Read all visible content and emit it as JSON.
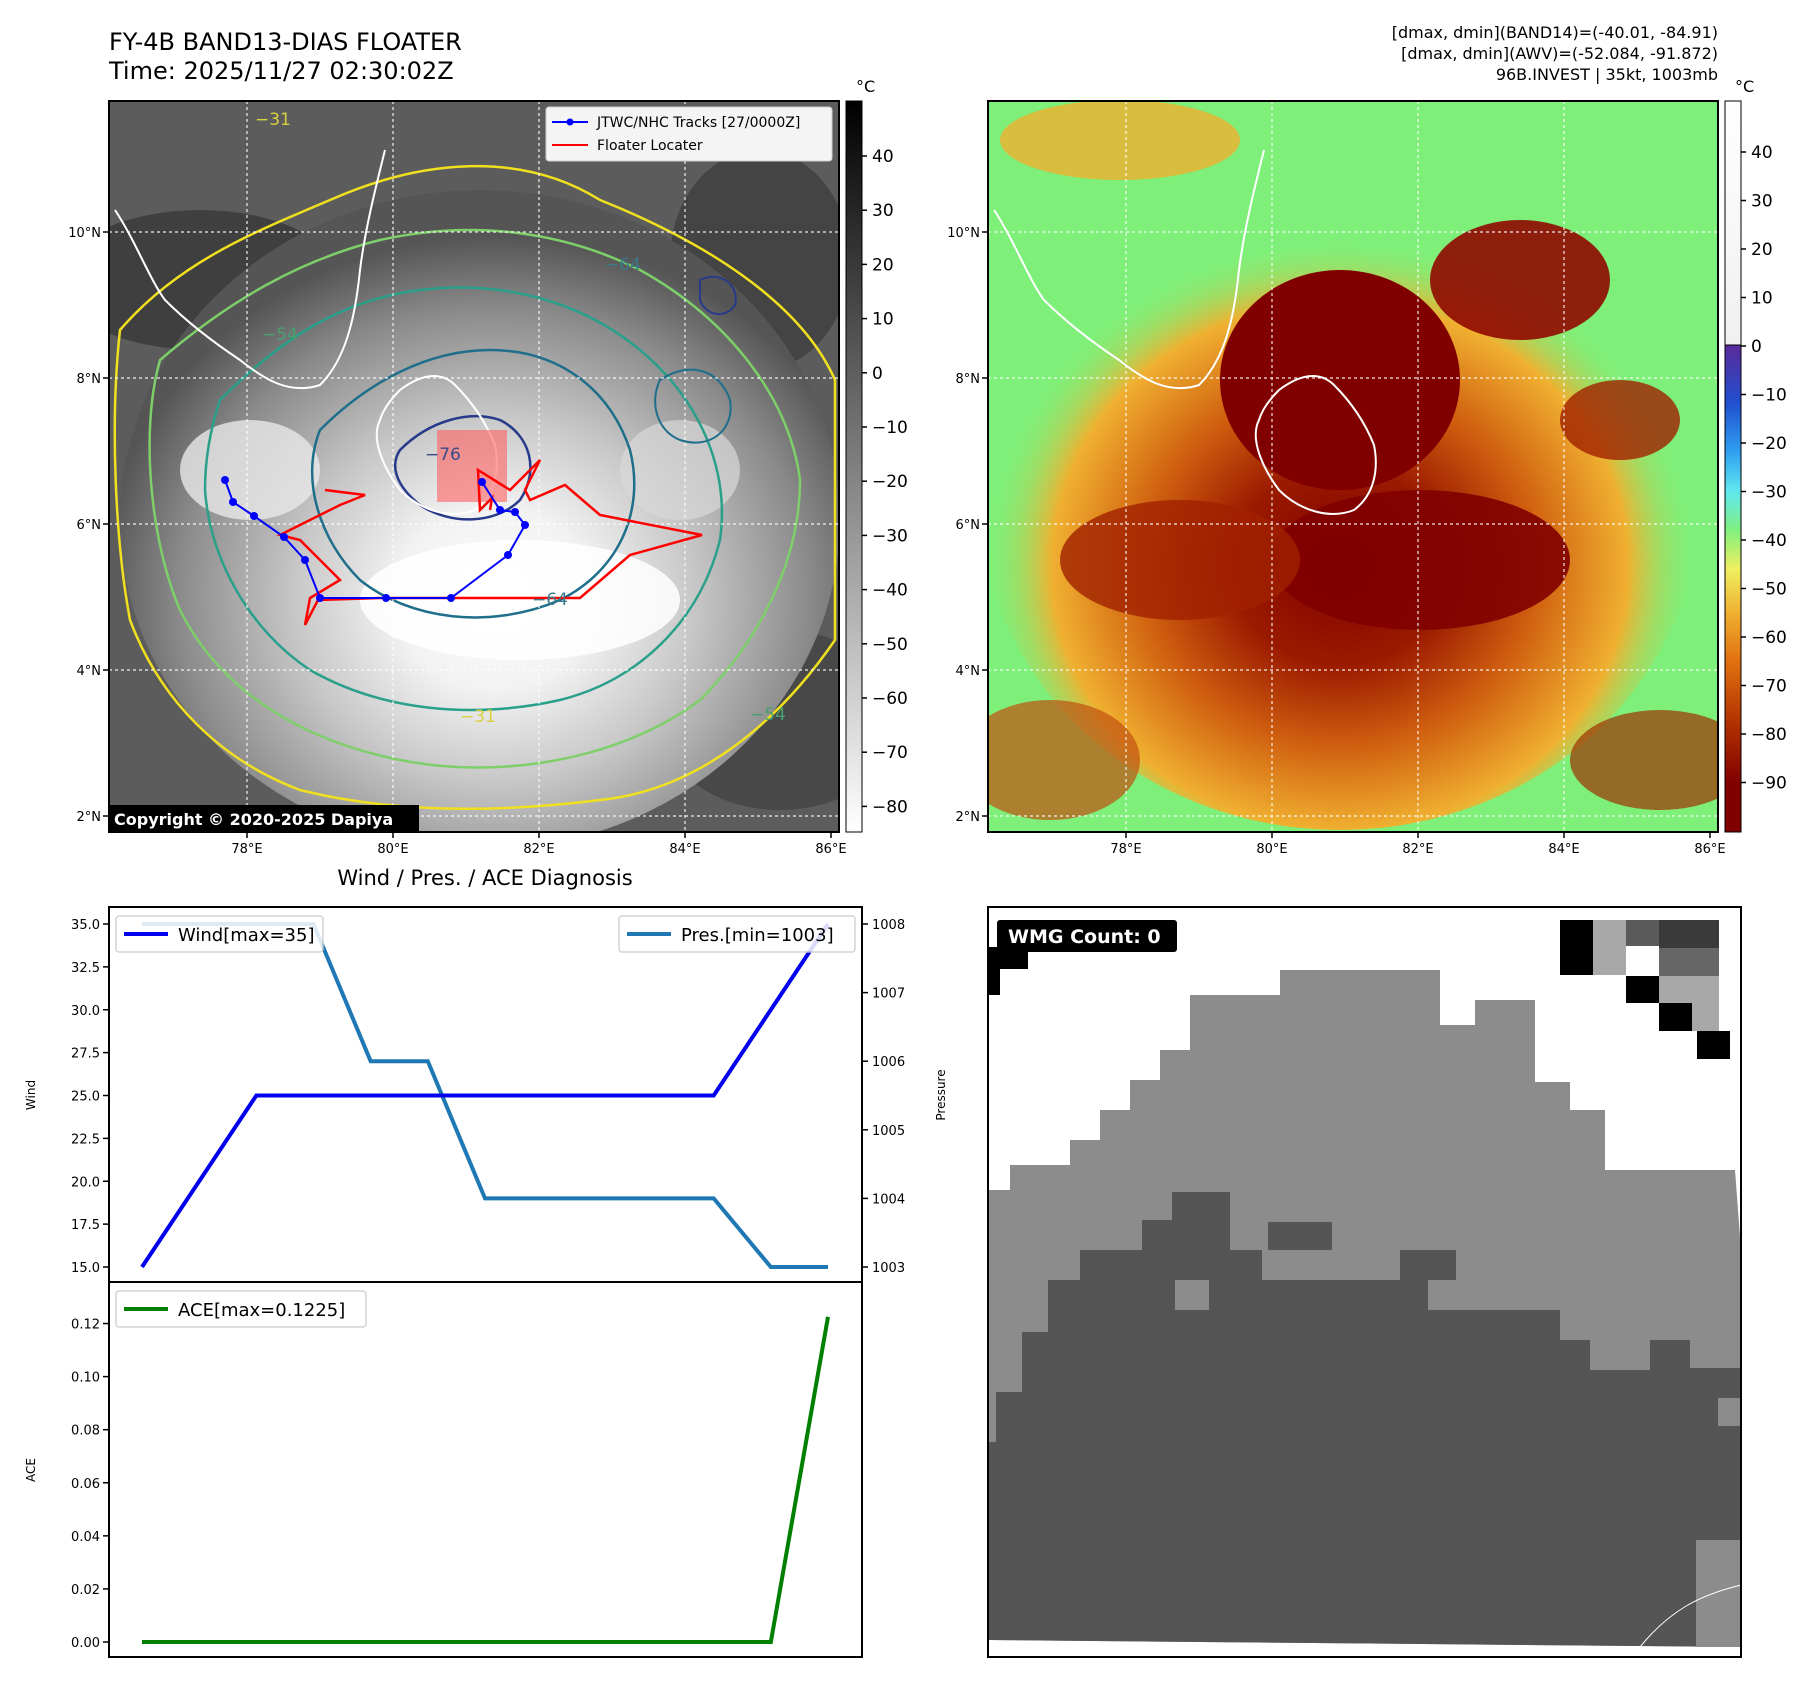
{
  "header": {
    "title_line1": "FY-4B BAND13-DIAS FLOATER",
    "title_line2": "Time: 2025/11/27 02:30:02Z",
    "info_line1": "[dmax, dmin](BAND14)=(-40.01, -84.91)",
    "info_line2": "[dmax, dmin](AWV)=(-52.084, -91.872)",
    "info_line3": "96B.INVEST | 35kt, 1003mb"
  },
  "map_left": {
    "legend": {
      "track_label": "JTWC/NHC Tracks [27/0000Z]",
      "locator_label": "Floater Locater"
    },
    "copyright": "Copyright © 2020-2025 Dapiya",
    "colorbar": {
      "unit": "°C",
      "ticks": [
        "40",
        "30",
        "20",
        "10",
        "0",
        "−10",
        "−20",
        "−30",
        "−40",
        "−50",
        "−60",
        "−70",
        "−80"
      ]
    },
    "contour_labels": [
      "−31",
      "−54",
      "−64",
      "−76"
    ]
  },
  "map_right": {
    "colorbar": {
      "unit": "°C",
      "ticks": [
        "40",
        "30",
        "20",
        "10",
        "0",
        "−10",
        "−20",
        "−30",
        "−40",
        "−50",
        "−60",
        "−70",
        "−80",
        "−90"
      ]
    }
  },
  "map_axes": {
    "lon_ticks": [
      "78°E",
      "80°E",
      "82°E",
      "84°E",
      "86°E"
    ],
    "lat_ticks": [
      "10°N",
      "8°N",
      "6°N",
      "4°N",
      "2°N"
    ]
  },
  "wmg": {
    "label": "WMG Count: 0"
  },
  "colors": {
    "wind": "#0000ee",
    "pres": "#1f77b4",
    "ace": "#008000",
    "track": "#0000ff",
    "locator": "#ff0000"
  },
  "chart_data": [
    {
      "type": "line",
      "title": "Wind / Pres. / ACE Diagnosis",
      "ylabel": "Wind",
      "y2label": "Pressure",
      "ylim": [
        15.0,
        35.0
      ],
      "y2lim": [
        1003,
        1008
      ],
      "yticks": [
        "35.0",
        "32.5",
        "30.0",
        "27.5",
        "25.0",
        "22.5",
        "20.0",
        "17.5",
        "15.0"
      ],
      "y2ticks": [
        "1008",
        "1007",
        "1006",
        "1005",
        "1004",
        "1003"
      ],
      "legend": [
        "top-left",
        "top-right"
      ],
      "series": [
        {
          "name": "Wind[max=35]",
          "axis": "left",
          "x": [
            0,
            1,
            2,
            3,
            4,
            5,
            6,
            7,
            8,
            9,
            10,
            11,
            12
          ],
          "values": [
            15,
            20,
            25,
            25,
            25,
            25,
            25,
            25,
            25,
            25,
            25,
            30,
            35
          ]
        },
        {
          "name": "Pres.[min=1003]",
          "axis": "right",
          "x": [
            0,
            1,
            2,
            3,
            4,
            5,
            6,
            7,
            8,
            9,
            10,
            11,
            12
          ],
          "values": [
            1008,
            1008,
            1008,
            1008,
            1006,
            1006,
            1004,
            1004,
            1004,
            1004,
            1004,
            1003,
            1003
          ]
        }
      ]
    },
    {
      "type": "line",
      "ylabel": "ACE",
      "ylim": [
        0.0,
        0.13
      ],
      "yticks": [
        "0.12",
        "0.10",
        "0.08",
        "0.06",
        "0.04",
        "0.02",
        "0.00"
      ],
      "legend": "top-left",
      "series": [
        {
          "name": "ACE[max=0.1225]",
          "x": [
            0,
            1,
            2,
            3,
            4,
            5,
            6,
            7,
            8,
            9,
            10,
            11,
            12
          ],
          "values": [
            0,
            0,
            0,
            0,
            0,
            0,
            0,
            0,
            0,
            0,
            0,
            0,
            0.1225
          ]
        }
      ]
    }
  ]
}
